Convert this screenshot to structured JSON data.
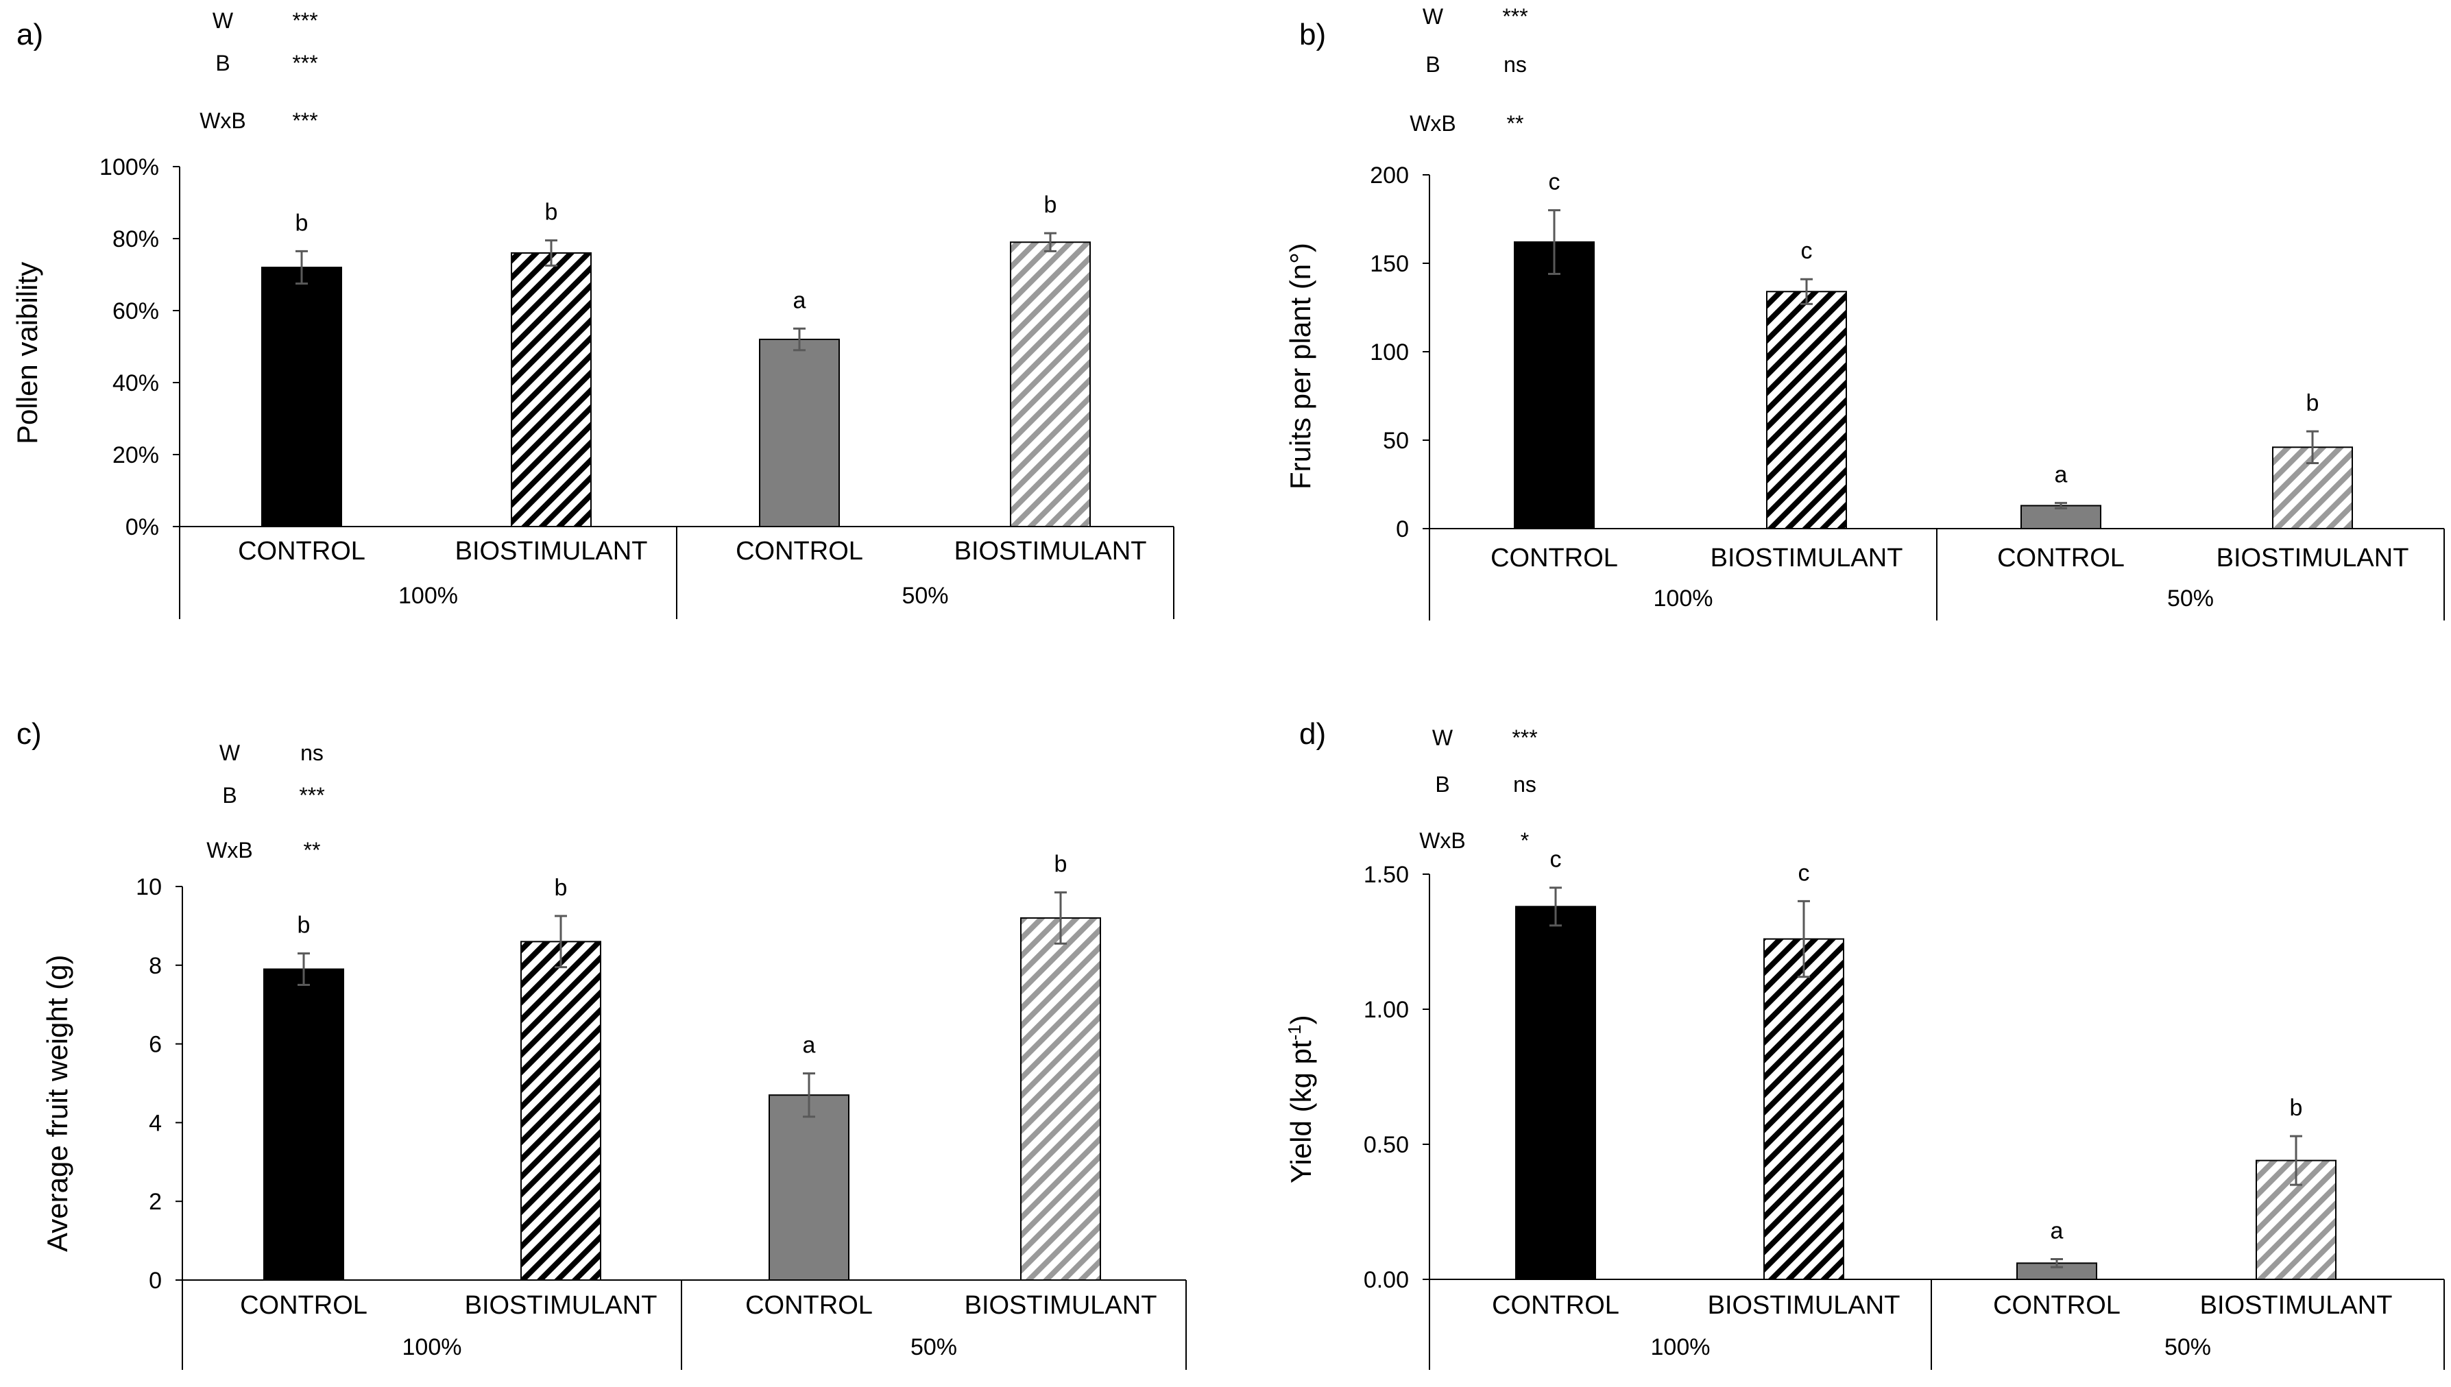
{
  "chart_data": [
    {
      "type": "bar",
      "panel_label": "a)",
      "ylabel": "Pollen vaibility",
      "ylim": [
        0,
        100
      ],
      "ytick_values": [
        0,
        20,
        40,
        60,
        80,
        100
      ],
      "ytick_labels": [
        "0%",
        "20%",
        "40%",
        "60%",
        "80%",
        "100%"
      ],
      "groups": [
        "100%",
        "50%"
      ],
      "categories": [
        "CONTROL",
        "BIOSTIMULANT",
        "CONTROL",
        "BIOSTIMULANT"
      ],
      "values": [
        72,
        76,
        52,
        79
      ],
      "errors": [
        4.5,
        3.5,
        3,
        2.5
      ],
      "letters": [
        "b",
        "b",
        "a",
        "b"
      ],
      "stats": [
        {
          "factor": "W",
          "sig": "***"
        },
        {
          "factor": "B",
          "sig": "***"
        },
        {
          "factor": "WxB",
          "sig": "***"
        }
      ]
    },
    {
      "type": "bar",
      "panel_label": "b)",
      "ylabel": "Fruits per plant (n°)",
      "ylim": [
        0,
        200
      ],
      "ytick_values": [
        0,
        50,
        100,
        150,
        200
      ],
      "ytick_labels": [
        "0",
        "50",
        "100",
        "150",
        "200"
      ],
      "groups": [
        "100%",
        "50%"
      ],
      "categories": [
        "CONTROL",
        "BIOSTIMULANT",
        "CONTROL",
        "BIOSTIMULANT"
      ],
      "values": [
        162,
        134,
        13,
        46
      ],
      "errors": [
        18,
        7,
        1.5,
        9
      ],
      "letters": [
        "c",
        "c",
        "a",
        "b"
      ],
      "stats": [
        {
          "factor": "W",
          "sig": "***"
        },
        {
          "factor": "B",
          "sig": "ns"
        },
        {
          "factor": "WxB",
          "sig": "**"
        }
      ]
    },
    {
      "type": "bar",
      "panel_label": "c)",
      "ylabel": "Average fruit weight (g)",
      "ylim": [
        0,
        10
      ],
      "ytick_values": [
        0,
        2,
        4,
        6,
        8,
        10
      ],
      "ytick_labels": [
        "0",
        "2",
        "4",
        "6",
        "8",
        "10"
      ],
      "groups": [
        "100%",
        "50%"
      ],
      "categories": [
        "CONTROL",
        "BIOSTIMULANT",
        "CONTROL",
        "BIOSTIMULANT"
      ],
      "values": [
        7.9,
        8.6,
        4.7,
        9.2
      ],
      "errors": [
        0.4,
        0.65,
        0.55,
        0.65
      ],
      "letters": [
        "b",
        "b",
        "a",
        "b"
      ],
      "stats": [
        {
          "factor": "W",
          "sig": "ns"
        },
        {
          "factor": "B",
          "sig": "***"
        },
        {
          "factor": "WxB",
          "sig": "**"
        }
      ]
    },
    {
      "type": "bar",
      "panel_label": "d)",
      "ylabel": "Yield (kg pt",
      "ylabel_sup": "-1",
      "ylabel_tail": ")",
      "ylim": [
        0,
        1.5
      ],
      "ytick_values": [
        0,
        0.5,
        1.0,
        1.5
      ],
      "ytick_labels": [
        "0.00",
        "0.50",
        "1.00",
        "1.50"
      ],
      "groups": [
        "100%",
        "50%"
      ],
      "categories": [
        "CONTROL",
        "BIOSTIMULANT",
        "CONTROL",
        "BIOSTIMULANT"
      ],
      "values": [
        1.38,
        1.26,
        0.06,
        0.44
      ],
      "errors": [
        0.07,
        0.14,
        0.015,
        0.09
      ],
      "letters": [
        "c",
        "c",
        "a",
        "b"
      ],
      "stats": [
        {
          "factor": "W",
          "sig": "***"
        },
        {
          "factor": "B",
          "sig": "ns"
        },
        {
          "factor": "WxB",
          "sig": "*"
        }
      ]
    }
  ],
  "colors": {
    "control_100": "#000000",
    "control_50": "#7f7f7f",
    "biostimulant_100_stripe": "#000000",
    "biostimulant_50_stripe": "#9a9a9a",
    "errorbar": "#595959",
    "axis": "#000000",
    "text": "#000000"
  }
}
